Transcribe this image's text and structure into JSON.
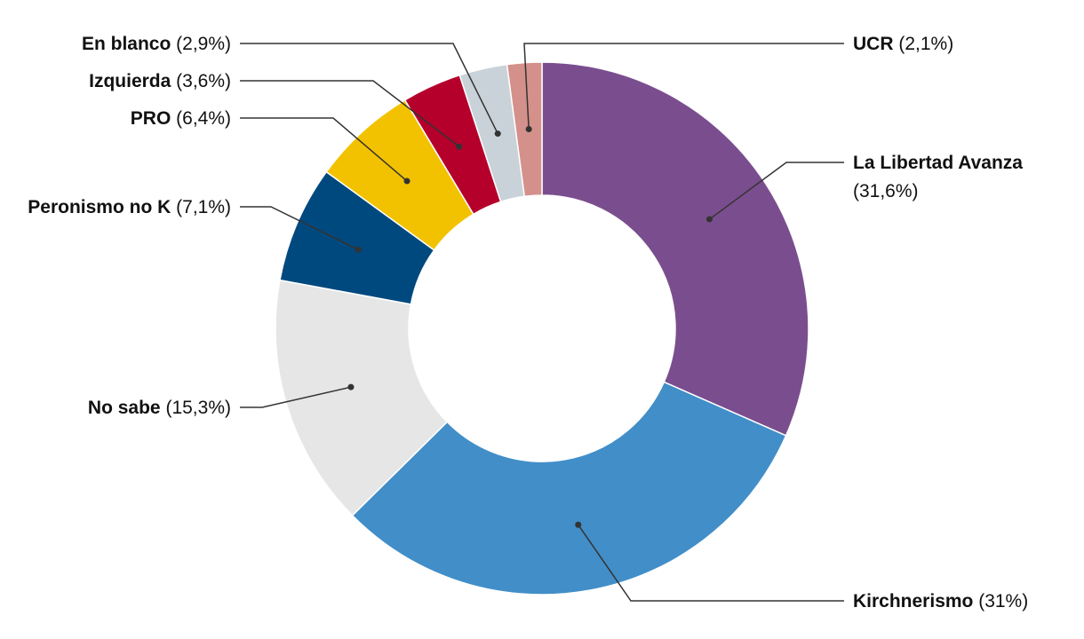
{
  "chart_data": {
    "type": "pie",
    "variant": "donut",
    "title": "",
    "legend": "none",
    "slices": [
      {
        "label": "La Libertad Avanza",
        "value": 31.6,
        "value_text": "(31,6%)",
        "color": "#7a4e8e"
      },
      {
        "label": "Kirchnerismo",
        "value": 31,
        "value_text": "(31%)",
        "color": "#418ec8"
      },
      {
        "label": "No sabe",
        "value": 15.3,
        "value_text": "(15,3%)",
        "color": "#e6e6e6"
      },
      {
        "label": "Peronismo no K",
        "value": 7.1,
        "value_text": "(7,1%)",
        "color": "#00497f"
      },
      {
        "label": "PRO",
        "value": 6.4,
        "value_text": "(6,4%)",
        "color": "#f2c200"
      },
      {
        "label": "Izquierda",
        "value": 3.6,
        "value_text": "(3,6%)",
        "color": "#b5002c"
      },
      {
        "label": "En blanco",
        "value": 2.9,
        "value_text": "(2,9%)",
        "color": "#c9d2d8"
      },
      {
        "label": "UCR",
        "value": 2.1,
        "value_text": "(2,1%)",
        "color": "#d4908a"
      }
    ]
  }
}
